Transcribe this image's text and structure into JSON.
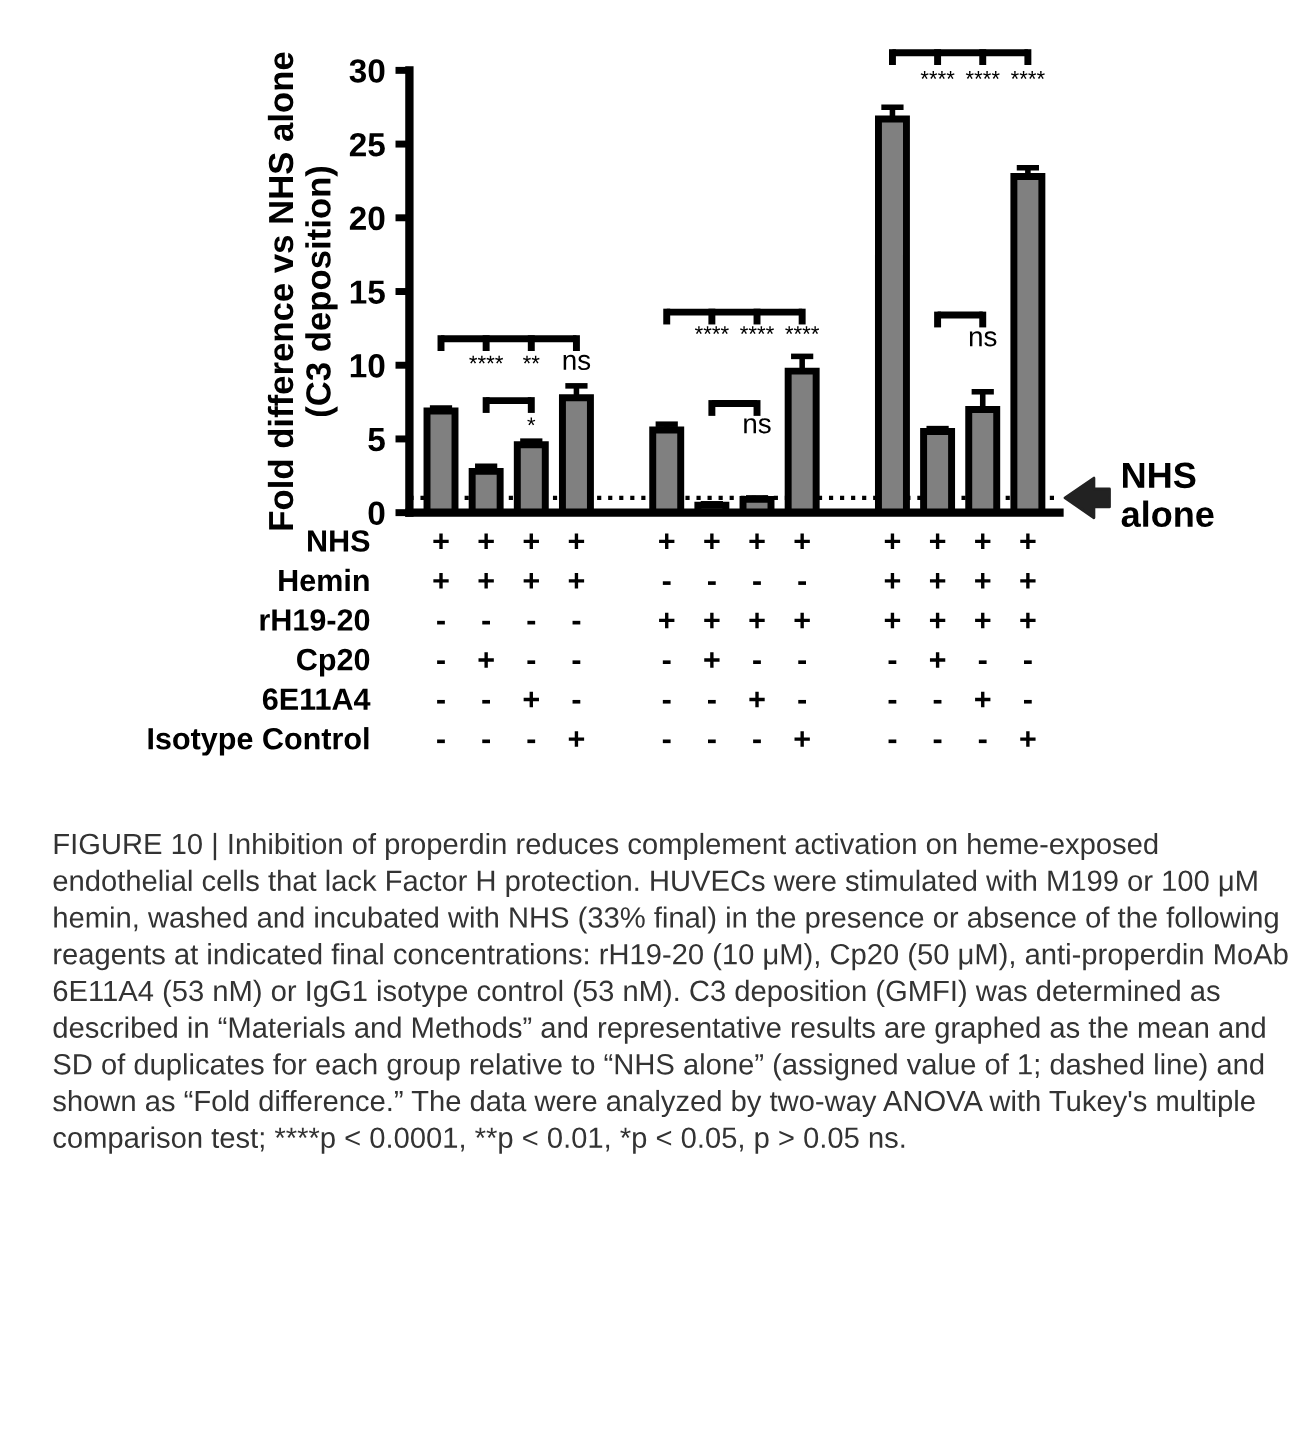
{
  "chart_data": {
    "type": "bar",
    "ylabel": "Fold difference vs NHS alone\n(C3 deposition)",
    "categories": [
      "+\n+\n-\n-\n-\n-",
      "+\n+\n-\n+\n-\n-",
      "+\n+\n-\n-\n+\n-",
      "+\n+\n-\n-\n-\n+",
      null,
      "+\n-\n+\n-\n-\n-",
      "+\n-\n+\n+\n-\n-",
      "+\n-\n+\n-\n+\n-",
      "+\n-\n+\n-\n-\n+",
      null,
      "+\n+\n+\n-\n-\n-",
      "+\n+\n+\n+\n-\n-",
      "+\n+\n+\n-\n+\n-",
      "+\n+\n+\n-\n-\n+"
    ],
    "values": [
      6.9,
      2.8,
      4.6,
      7.8,
      null,
      5.6,
      0.5,
      0.9,
      9.6,
      null,
      26.7,
      5.5,
      7.0,
      22.8
    ],
    "errors": [
      0.2,
      0.35,
      0.25,
      0.8,
      null,
      0.4,
      0.1,
      0.1,
      1.0,
      null,
      0.8,
      0.2,
      1.2,
      0.6
    ],
    "color": "#808080",
    "ylim": [
      0,
      30
    ],
    "yticks": [
      0,
      5,
      10,
      15,
      20,
      25,
      30
    ],
    "grid": false,
    "ref_lines": [
      {
        "axis": "y",
        "value": 1,
        "label": "NHS\nalone",
        "line_style": "dotted",
        "color": "#000000"
      }
    ],
    "annotations": [
      "NHS\nHemin\nrH19-20\nCp20\n6E11A4\nIsotype Control",
      "****",
      "**",
      "ns",
      "*",
      "****",
      "****",
      "****",
      "ns",
      "****",
      "****",
      "****",
      "ns",
      "FIGURE 10 | Inhibition of properdin reduces complement activation on heme-exposed endothelial cells that lack Factor H protection. HUVECs were stimulated with M199 or 100 μM hemin, washed and incubated with NHS (33% final) in the presence or absence of the following reagents at indicated final concentrations: rH19-20 (10 μM), Cp20 (50 μM), anti-properdin MoAb 6E11A4 (53 nM) or IgG1 isotype control (53 nM). C3 deposition (GMFI) was determined as described in “Materials and Methods” and representative results are graphed as the mean and SD of duplicates for each group relative to “NHS alone” (assigned value of 1; dashed line) and shown as “Fold difference.” The data were analyzed by two-way ANOVA with Tukey's multiple comparison test; ****p < 0.0001, **p < 0.01, *p < 0.05, p > 0.05 ns."
    ]
  }
}
